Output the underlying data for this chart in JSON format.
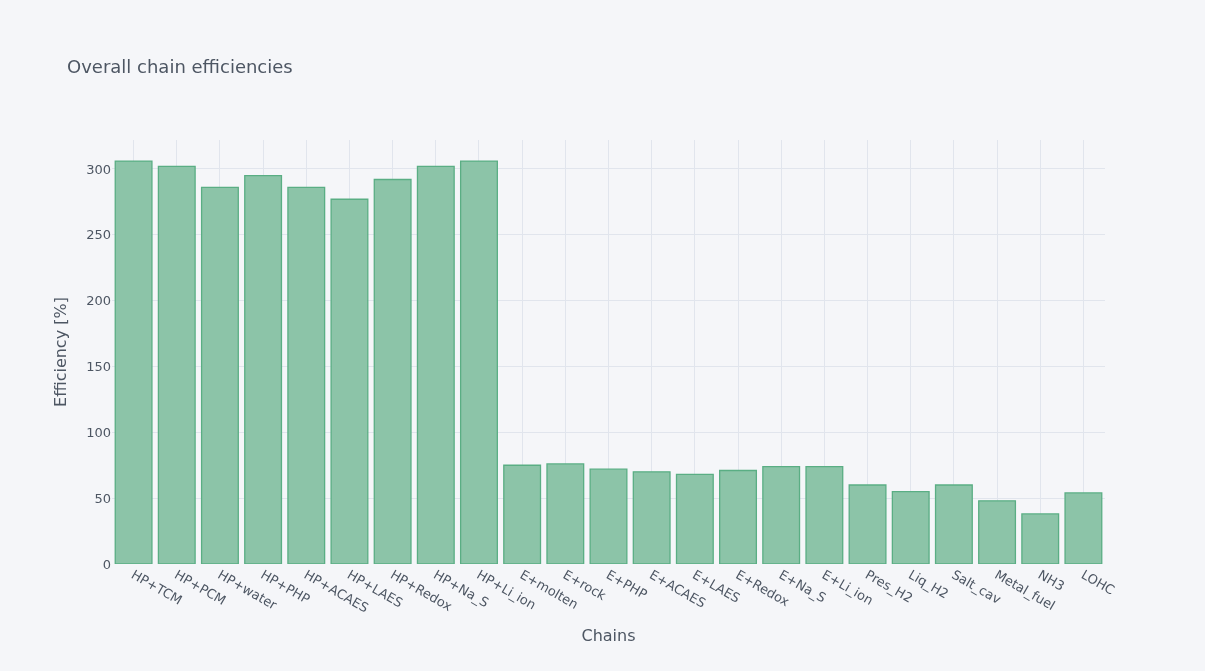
{
  "chart_data": {
    "type": "bar",
    "title": "Overall chain efficiencies",
    "xlabel": "Chains",
    "ylabel": "Efficiency [%]",
    "categories": [
      "HP+TCM",
      "HP+PCM",
      "HP+water",
      "HP+PHP",
      "HP+ACAES",
      "HP+LAES",
      "HP+Redox",
      "HP+Na_S",
      "HP+Li_ion",
      "E+molten",
      "E+rock",
      "E+PHP",
      "E+ACAES",
      "E+LAES",
      "E+Redox",
      "E+Na_S",
      "E+Li_ion",
      "Pres_H2",
      "Liq_H2",
      "Salt_cav",
      "Metal_fuel",
      "NH3",
      "LOHC"
    ],
    "values": [
      306,
      302,
      286,
      295,
      286,
      277,
      292,
      302,
      306,
      75,
      76,
      72,
      70,
      68,
      71,
      74,
      74,
      60,
      55,
      60,
      48,
      38,
      54
    ],
    "color": "#8cc4a8",
    "ylim": [
      0,
      322
    ],
    "yticks": [
      0,
      50,
      100,
      150,
      200,
      250,
      300
    ],
    "grid": true,
    "legend": false
  }
}
